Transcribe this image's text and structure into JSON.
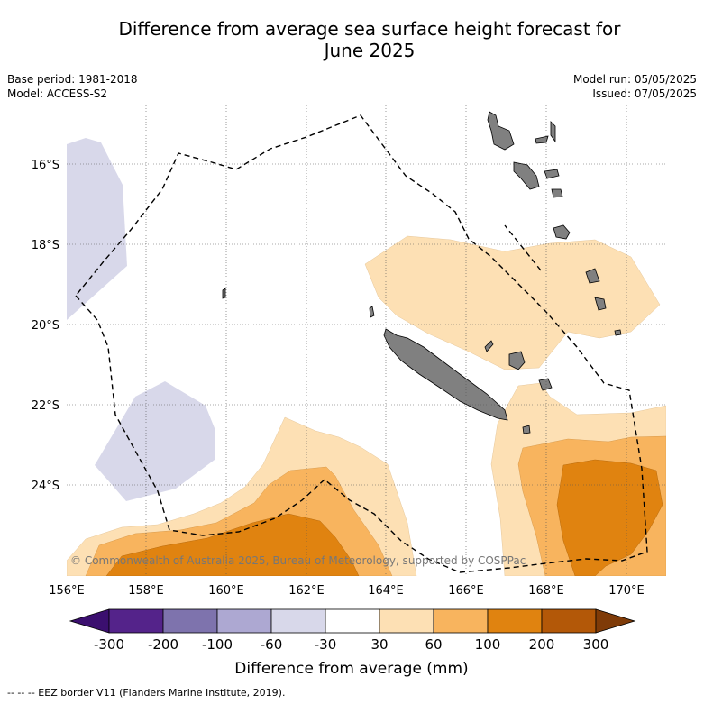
{
  "title_line1": "Difference from average sea surface height forecast for",
  "title_line2": "June 2025",
  "base_period": "Base period: 1981-2018",
  "model": "Model: ACCESS-S2",
  "model_run": "Model run: 05/05/2025",
  "issued": "Issued: 07/05/2025",
  "copyright": "© Commonwealth of Australia 2025, Bureau of Meteorology, supported by COSPPac",
  "lon_labels": [
    "156°E",
    "158°E",
    "160°E",
    "162°E",
    "164°E",
    "166°E",
    "168°E",
    "170°E"
  ],
  "lat_labels": [
    "16°S",
    "18°S",
    "20°S",
    "22°S",
    "24°S"
  ],
  "colorbar": {
    "label": "Difference from average (mm)",
    "ticks": [
      "-300",
      "-200",
      "-100",
      "-60",
      "-30",
      "30",
      "60",
      "100",
      "200",
      "300"
    ],
    "colors": [
      "#3b0f6f",
      "#54238a",
      "#7e73ad",
      "#ada8d2",
      "#d8d8ea",
      "#ffffff",
      "#fde0b4",
      "#f8b45e",
      "#e08310",
      "#b35808",
      "#7f3b08"
    ]
  },
  "land_color": "#808080",
  "eez_legend": "--  --  -- EEZ border V11 (Flanders Marine Institute, 2019)."
}
